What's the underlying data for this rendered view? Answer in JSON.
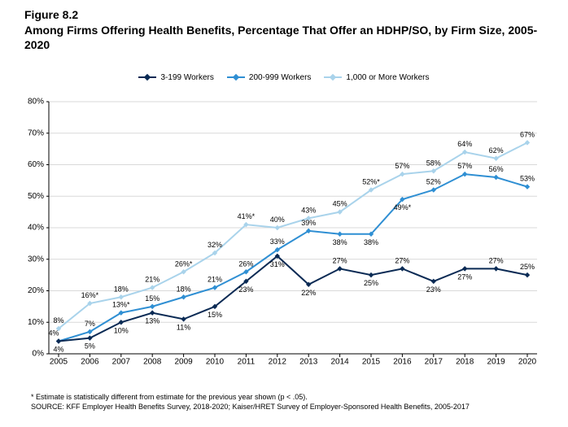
{
  "figure_number": "Figure 8.2",
  "figure_title": "Among Firms Offering Health Benefits, Percentage That Offer an HDHP/SO, by Firm Size, 2005-2020",
  "legend": {
    "series": [
      {
        "key": "s1",
        "label": "3-199 Workers"
      },
      {
        "key": "s2",
        "label": "200-999 Workers"
      },
      {
        "key": "s3",
        "label": "1,000 or More Workers"
      }
    ]
  },
  "chart": {
    "type": "line",
    "background_color": "#ffffff",
    "grid_color": "#d9d9d9",
    "axis_color": "#000000",
    "label_fontsize": 10,
    "datalabel_fontsize": 9,
    "ylim": [
      0,
      80
    ],
    "ytick_step": 10,
    "xticks": [
      "2005",
      "2006",
      "2007",
      "2008",
      "2009",
      "2010",
      "2011",
      "2012",
      "2013",
      "2014",
      "2015",
      "2016",
      "2017",
      "2018",
      "2019",
      "2020"
    ],
    "series": {
      "s1": {
        "name": "3-199 Workers",
        "color": "#0a2a54",
        "marker": "diamond",
        "line_width": 2,
        "values": [
          4,
          5,
          10,
          13,
          11,
          15,
          23,
          31,
          22,
          27,
          25,
          27,
          23,
          27,
          27,
          25
        ],
        "labels": [
          "4%",
          "5%",
          "10%",
          "13%",
          "11%",
          "15%",
          "23%",
          "31%",
          "22%",
          "27%",
          "25%",
          "27%",
          "23%",
          "27%",
          "27%",
          "25%"
        ],
        "label_pos": [
          "below",
          "below",
          "below",
          "below",
          "below",
          "below",
          "below",
          "below",
          "below",
          "above",
          "below",
          "above",
          "below",
          "below",
          "above",
          "above"
        ]
      },
      "s2": {
        "name": "200-999 Workers",
        "color": "#2f8fd3",
        "marker": "diamond",
        "line_width": 2,
        "values": [
          4,
          7,
          13,
          15,
          18,
          21,
          26,
          33,
          39,
          38,
          38,
          49,
          52,
          57,
          56,
          53
        ],
        "labels": [
          "4%",
          "7%",
          "13%*",
          "15%",
          "18%",
          "21%",
          "26%",
          "33%",
          "39%",
          "38%",
          "38%",
          "49%*",
          "52%",
          "57%",
          "56%",
          "53%"
        ],
        "label_pos": [
          "above",
          "above",
          "above",
          "above",
          "above",
          "above",
          "above",
          "above",
          "above",
          "below",
          "below",
          "below",
          "above",
          "above",
          "above",
          "above"
        ]
      },
      "s3": {
        "name": "1,000 or More Workers",
        "color": "#a9d3eb",
        "marker": "diamond",
        "line_width": 2,
        "values": [
          8,
          16,
          18,
          21,
          26,
          32,
          41,
          40,
          43,
          45,
          52,
          57,
          58,
          64,
          62,
          67
        ],
        "labels": [
          "8%",
          "16%*",
          "18%",
          "21%",
          "26%*",
          "32%",
          "41%*",
          "40%",
          "43%",
          "45%",
          "52%*",
          "57%",
          "58%",
          "64%",
          "62%",
          "67%"
        ],
        "label_pos": [
          "above",
          "above",
          "above",
          "above",
          "above",
          "above",
          "above",
          "above",
          "above",
          "above",
          "above",
          "above",
          "above",
          "above",
          "above",
          "above"
        ]
      }
    }
  },
  "footnote_star": "* Estimate is statistically different from estimate for the previous year shown (p < .05).",
  "footnote_source": "SOURCE: KFF Employer Health Benefits Survey, 2018-2020; Kaiser/HRET Survey of Employer-Sponsored Health Benefits, 2005-2017"
}
